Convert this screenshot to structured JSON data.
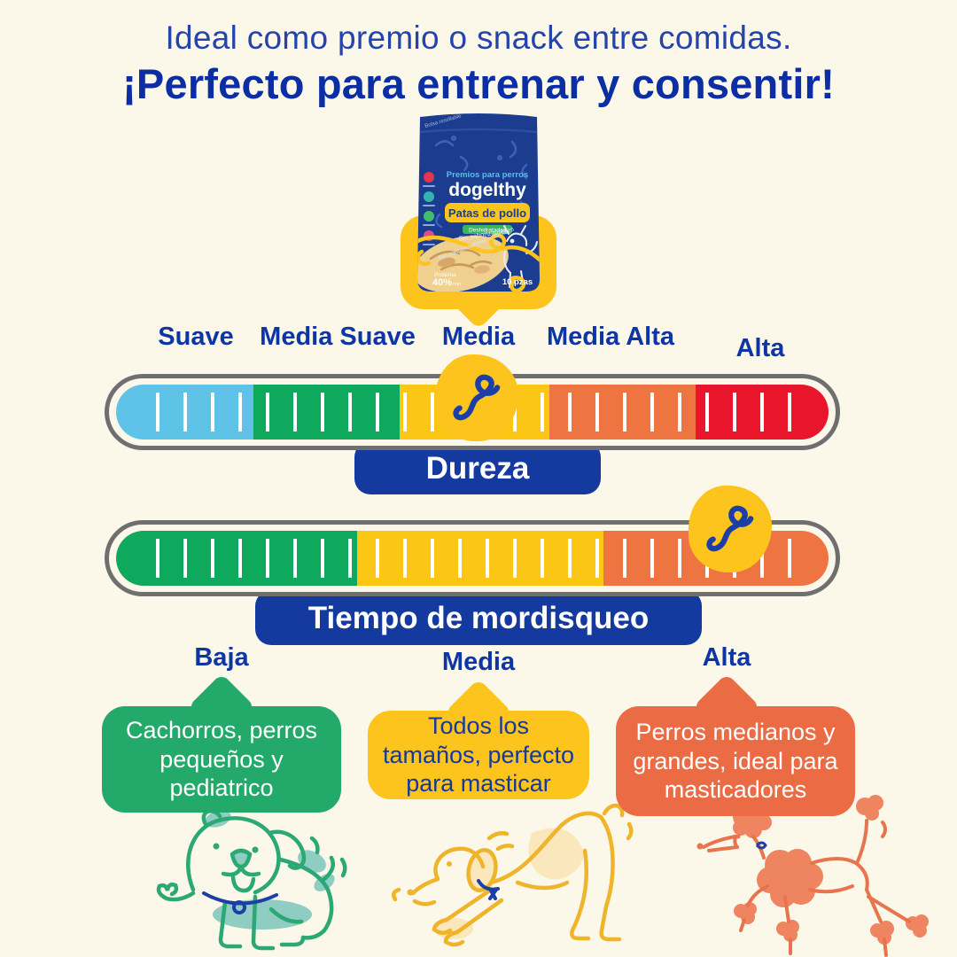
{
  "header": {
    "subtitle": "Ideal como premio o snack entre comidas.",
    "title": "¡Perfecto para entrenar y consentir!"
  },
  "package": {
    "reseal": "Bolsa resellable",
    "category": "Premios para perros",
    "brand": "dogelthy",
    "product": "Patas de pollo",
    "variant": "Deshidratadas",
    "claim_flavor": "Sin saborizantes",
    "claim_preservatives": "Sin conservadores artificiales",
    "protein_label": "Proteína",
    "protein_value": "40%",
    "protein_min": "min",
    "pieces": "10 pzas"
  },
  "hardness": {
    "title": "Dureza",
    "selected_level": "Media",
    "marker_pct": 50.6,
    "labels": [
      {
        "text": "Suave"
      },
      {
        "text": "Media Suave"
      },
      {
        "text": "Media"
      },
      {
        "text": "Media Alta"
      },
      {
        "text": "Alta"
      }
    ],
    "segments": [
      {
        "name": "suave",
        "color": "#5FC2E7",
        "width_pct": 19.3
      },
      {
        "name": "media-suave",
        "color": "#0EA95D",
        "width_pct": 20.5
      },
      {
        "name": "media",
        "color": "#FCC614",
        "width_pct": 21.0
      },
      {
        "name": "media-alta",
        "color": "#EE7441",
        "width_pct": 20.5
      },
      {
        "name": "alta",
        "color": "#E8152B",
        "width_pct": 18.7
      }
    ]
  },
  "chew": {
    "title": "Tiempo de mordisqueo",
    "marker_pct": 85.8,
    "segments": [
      {
        "name": "baja",
        "color": "#0EA95D",
        "width_pct": 33.8
      },
      {
        "name": "media",
        "color": "#FCC614",
        "width_pct": 34.6
      },
      {
        "name": "alta",
        "color": "#EE7441",
        "width_pct": 31.6
      }
    ]
  },
  "levels": [
    {
      "label": "Baja",
      "color": "#23AA6B",
      "text_color": "#FFFFFF",
      "description": "Cachorros, perros pequeños y pediatrico"
    },
    {
      "label": "Media",
      "color": "#FCC41C",
      "text_color": "#14399F",
      "description": "Todos los tamaños, perfecto para masticar"
    },
    {
      "label": "Alta",
      "color": "#EB6B44",
      "text_color": "#FFFFFF",
      "description": "Perros medianos y grandes, ideal para masticadores"
    }
  ],
  "colors": {
    "background": "#FBF7E9",
    "brand_blue": "#14399F",
    "accent_yellow": "#FCC41C",
    "outline_gray": "#6F6F6F",
    "package_navy": "#1C3D8F"
  }
}
